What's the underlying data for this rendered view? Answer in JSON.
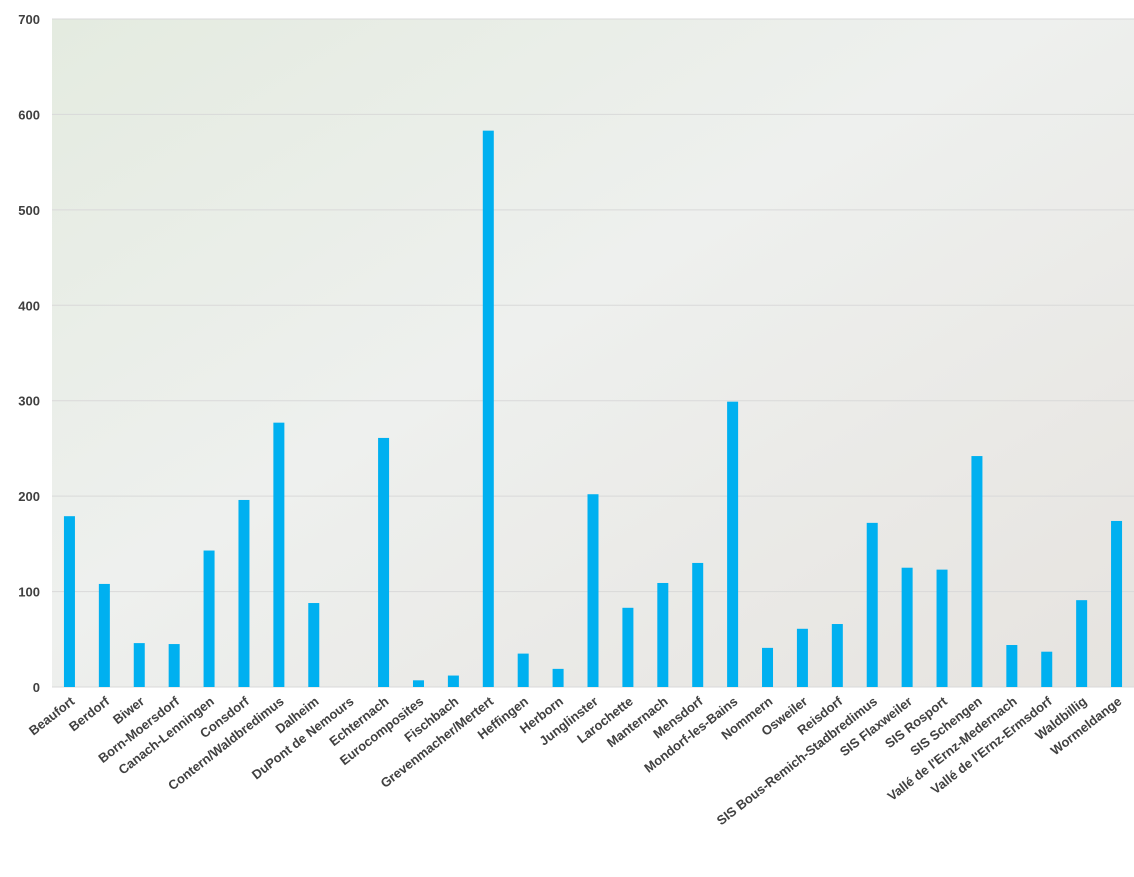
{
  "chart_data": {
    "type": "bar",
    "categories": [
      "Beaufort",
      "Berdorf",
      "Biwer",
      "Born-Moersdorf",
      "Canach-Lenningen",
      "Consdorf",
      "Contern/Waldbredimus",
      "Dalheim",
      "DuPont de Nemours",
      "Echternach",
      "Eurocomposites",
      "Fischbach",
      "Grevenmacher/Mertert",
      "Heffingen",
      "Herborn",
      "Junglinster",
      "Larochette",
      "Manternach",
      "Mensdorf",
      "Mondorf-les-Bains",
      "Nommern",
      "Osweiler",
      "Reisdorf",
      "SIS Bous-Remich-Stadbredimus",
      "SIS Flaxweiler",
      "SIS Rosport",
      "SIS Schengen",
      "Vallé de l'Ernz-Medernach",
      "Vallé de l'Ernz-Ermsdorf",
      "Waldbillig",
      "Wormeldange"
    ],
    "values": [
      179,
      108,
      46,
      45,
      143,
      196,
      277,
      88,
      0,
      261,
      7,
      12,
      583,
      35,
      19,
      202,
      83,
      109,
      130,
      299,
      41,
      61,
      66,
      172,
      125,
      123,
      242,
      44,
      37,
      91,
      174
    ],
    "color": "#00b0f0",
    "ylim": [
      0,
      700
    ],
    "yticks": [
      0,
      100,
      200,
      300,
      400,
      500,
      600,
      700
    ],
    "grid": true
  }
}
